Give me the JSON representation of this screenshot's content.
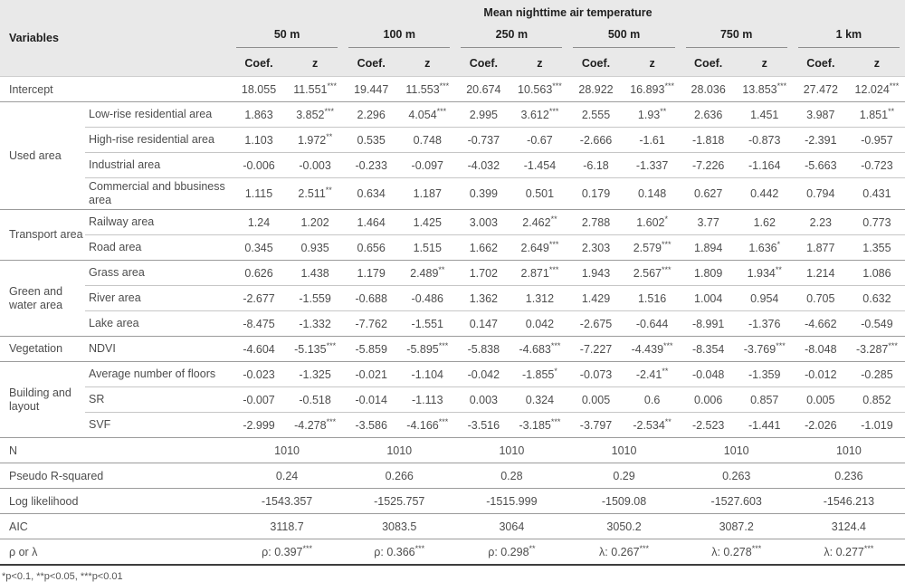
{
  "title": "Mean nighttime air temperature",
  "variables_header": "Variables",
  "scales": [
    "50 m",
    "100 m",
    "250 m",
    "500 m",
    "750 m",
    "1 km"
  ],
  "subheaders": {
    "coef": "Coef.",
    "z": "z"
  },
  "chart_data": {
    "type": "table",
    "title": "Mean nighttime air temperature",
    "column_groups": [
      "50 m",
      "100 m",
      "250 m",
      "500 m",
      "750 m",
      "1 km"
    ],
    "columns_per_group": [
      "Coef.",
      "z"
    ]
  },
  "groups": [
    {
      "name": "",
      "rows": [
        {
          "label": "Intercept",
          "cells": [
            "18.055",
            "11.551***",
            "19.447",
            "11.553***",
            "20.674",
            "10.563***",
            "28.922",
            "16.893***",
            "28.036",
            "13.853***",
            "27.472",
            "12.024***"
          ]
        }
      ]
    },
    {
      "name": "Used area",
      "rows": [
        {
          "label": "Low-rise residential area",
          "cells": [
            "1.863",
            "3.852***",
            "2.296",
            "4.054***",
            "2.995",
            "3.612***",
            "2.555",
            "1.93**",
            "2.636",
            "1.451",
            "3.987",
            "1.851**"
          ]
        },
        {
          "label": "High-rise residential area",
          "cells": [
            "1.103",
            "1.972**",
            "0.535",
            "0.748",
            "-0.737",
            "-0.67",
            "-2.666",
            "-1.61",
            "-1.818",
            "-0.873",
            "-2.391",
            "-0.957"
          ]
        },
        {
          "label": "Industrial area",
          "cells": [
            "-0.006",
            "-0.003",
            "-0.233",
            "-0.097",
            "-4.032",
            "-1.454",
            "-6.18",
            "-1.337",
            "-7.226",
            "-1.164",
            "-5.663",
            "-0.723"
          ]
        },
        {
          "label": "Commercial and bbusiness area",
          "cells": [
            "1.115",
            "2.511**",
            "0.634",
            "1.187",
            "0.399",
            "0.501",
            "0.179",
            "0.148",
            "0.627",
            "0.442",
            "0.794",
            "0.431"
          ]
        }
      ]
    },
    {
      "name": "Transport area",
      "rows": [
        {
          "label": "Railway area",
          "cells": [
            "1.24",
            "1.202",
            "1.464",
            "1.425",
            "3.003",
            "2.462**",
            "2.788",
            "1.602*",
            "3.77",
            "1.62",
            "2.23",
            "0.773"
          ]
        },
        {
          "label": "Road area",
          "cells": [
            "0.345",
            "0.935",
            "0.656",
            "1.515",
            "1.662",
            "2.649***",
            "2.303",
            "2.579***",
            "1.894",
            "1.636*",
            "1.877",
            "1.355"
          ]
        }
      ]
    },
    {
      "name": "Green and water area",
      "rows": [
        {
          "label": "Grass area",
          "cells": [
            "0.626",
            "1.438",
            "1.179",
            "2.489**",
            "1.702",
            "2.871***",
            "1.943",
            "2.567***",
            "1.809",
            "1.934**",
            "1.214",
            "1.086"
          ]
        },
        {
          "label": "River area",
          "cells": [
            "-2.677",
            "-1.559",
            "-0.688",
            "-0.486",
            "1.362",
            "1.312",
            "1.429",
            "1.516",
            "1.004",
            "0.954",
            "0.705",
            "0.632"
          ]
        },
        {
          "label": "Lake area",
          "cells": [
            "-8.475",
            "-1.332",
            "-7.762",
            "-1.551",
            "0.147",
            "0.042",
            "-2.675",
            "-0.644",
            "-8.991",
            "-1.376",
            "-4.662",
            "-0.549"
          ]
        }
      ]
    },
    {
      "name": "Vegetation",
      "rows": [
        {
          "label": "NDVI",
          "cells": [
            "-4.604",
            "-5.135***",
            "-5.859",
            "-5.895***",
            "-5.838",
            "-4.683***",
            "-7.227",
            "-4.439***",
            "-8.354",
            "-3.769***",
            "-8.048",
            "-3.287***"
          ]
        }
      ]
    },
    {
      "name": "Building and layout",
      "rows": [
        {
          "label": "Average number of floors",
          "cells": [
            "-0.023",
            "-1.325",
            "-0.021",
            "-1.104",
            "-0.042",
            "-1.855*",
            "-0.073",
            "-2.41**",
            "-0.048",
            "-1.359",
            "-0.012",
            "-0.285"
          ]
        },
        {
          "label": "SR",
          "cells": [
            "-0.007",
            "-0.518",
            "-0.014",
            "-1.113",
            "0.003",
            "0.324",
            "0.005",
            "0.6",
            "0.006",
            "0.857",
            "0.005",
            "0.852"
          ]
        },
        {
          "label": "SVF",
          "cells": [
            "-2.999",
            "-4.278***",
            "-3.586",
            "-4.166***",
            "-3.516",
            "-3.185***",
            "-3.797",
            "-2.534**",
            "-2.523",
            "-1.441",
            "-2.026",
            "-1.019"
          ]
        }
      ]
    }
  ],
  "stats": [
    {
      "label": "N",
      "values": [
        "1010",
        "1010",
        "1010",
        "1010",
        "1010",
        "1010"
      ]
    },
    {
      "label": "Pseudo R-squared",
      "values": [
        "0.24",
        "0.266",
        "0.28",
        "0.29",
        "0.263",
        "0.236"
      ]
    },
    {
      "label": "Log likelihood",
      "values": [
        "-1543.357",
        "-1525.757",
        "-1515.999",
        "-1509.08",
        "-1527.603",
        "-1546.213"
      ]
    },
    {
      "label": "AIC",
      "values": [
        "3118.7",
        "3083.5",
        "3064",
        "3050.2",
        "3087.2",
        "3124.4"
      ]
    },
    {
      "label": "ρ or λ",
      "values": [
        "ρ: 0.397***",
        "ρ: 0.366***",
        "ρ: 0.298**",
        "λ: 0.267***",
        "λ: 0.278***",
        "λ: 0.277***"
      ]
    }
  ],
  "footnote": "*p<0.1, **p<0.05, ***p<0.01"
}
